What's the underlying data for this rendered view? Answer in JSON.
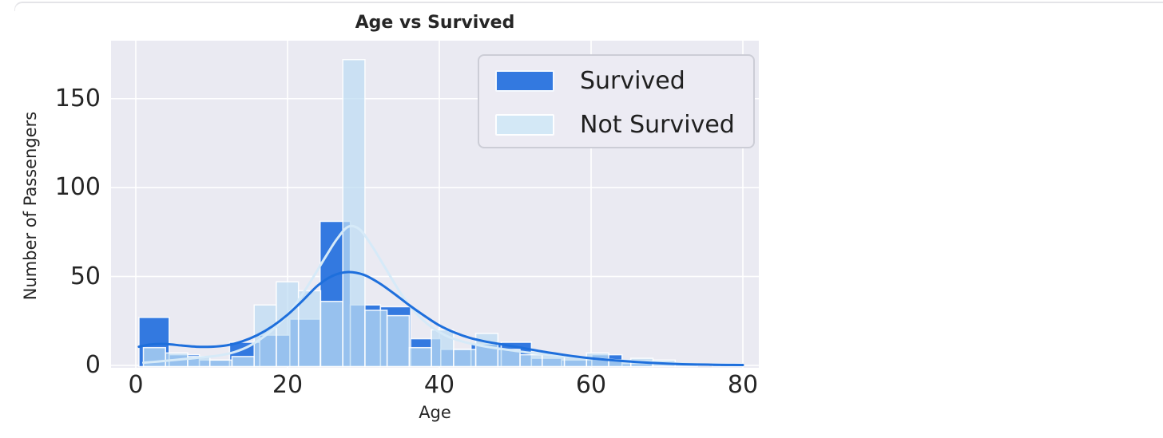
{
  "window": {
    "card_top_border": "rounded light-grey card edge across top of page"
  },
  "chart_data": {
    "type": "histogram",
    "title": "Age vs Survived",
    "xlabel": "Age",
    "ylabel": "Number of Passengers",
    "x_ticks": [
      0,
      20,
      40,
      60,
      80
    ],
    "y_ticks": [
      0,
      50,
      100,
      150
    ],
    "xlim": [
      -3.3,
      82.1
    ],
    "ylim": [
      0,
      182
    ],
    "grid": true,
    "legend_position": "upper right",
    "plot_bg": "#EAEAF2",
    "gridline_color": "#ffffff",
    "series": [
      {
        "name": "Survived",
        "type": "bars",
        "color": "#3379e0",
        "fill_opacity": 1,
        "bins": [
          [
            0.42,
            4.4,
            27
          ],
          [
            4.4,
            8.38,
            6
          ],
          [
            8.38,
            12.36,
            3
          ],
          [
            12.36,
            16.34,
            13
          ],
          [
            16.34,
            20.31,
            17
          ],
          [
            20.31,
            24.29,
            26
          ],
          [
            24.29,
            28.27,
            81
          ],
          [
            28.27,
            32.25,
            34
          ],
          [
            32.25,
            36.23,
            33
          ],
          [
            36.23,
            40.2,
            15
          ],
          [
            40.2,
            44.18,
            9
          ],
          [
            44.18,
            48.16,
            12
          ],
          [
            48.16,
            52.14,
            13
          ],
          [
            52.14,
            56.12,
            4
          ],
          [
            56.12,
            60.1,
            3
          ],
          [
            60.1,
            64.08,
            6
          ],
          [
            64.08,
            68.06,
            1
          ],
          [
            68.06,
            72.04,
            0
          ],
          [
            72.04,
            76.02,
            0
          ],
          [
            76.02,
            80.0,
            1
          ]
        ]
      },
      {
        "name": "Not Survived",
        "type": "bars",
        "color": "#bedcf3",
        "legend_color": "#d3e8f6",
        "fill_opacity": 0.72,
        "bins": [
          [
            1.0,
            3.92,
            10
          ],
          [
            3.92,
            6.84,
            7
          ],
          [
            6.84,
            9.76,
            5
          ],
          [
            9.76,
            12.68,
            3
          ],
          [
            12.68,
            15.6,
            5
          ],
          [
            15.6,
            18.52,
            34
          ],
          [
            18.52,
            21.44,
            47
          ],
          [
            21.44,
            24.36,
            42
          ],
          [
            24.36,
            27.28,
            36
          ],
          [
            27.28,
            30.2,
            172
          ],
          [
            30.2,
            33.12,
            31
          ],
          [
            33.12,
            36.04,
            28
          ],
          [
            36.04,
            38.96,
            10
          ],
          [
            38.96,
            41.88,
            20
          ],
          [
            41.88,
            44.8,
            9
          ],
          [
            44.8,
            47.72,
            18
          ],
          [
            47.72,
            50.64,
            9
          ],
          [
            50.64,
            53.56,
            6
          ],
          [
            53.56,
            56.48,
            6
          ],
          [
            56.48,
            59.4,
            5
          ],
          [
            59.4,
            62.32,
            7
          ],
          [
            62.32,
            65.24,
            3
          ],
          [
            65.24,
            68.16,
            4
          ],
          [
            68.16,
            71.08,
            3
          ],
          [
            71.08,
            74.0,
            1
          ]
        ]
      },
      {
        "name": "Not Survived KDE",
        "type": "line",
        "color": "#d6eaf8",
        "points": [
          [
            1,
            1.5
          ],
          [
            3,
            2.2
          ],
          [
            5,
            3.0
          ],
          [
            7,
            3.8
          ],
          [
            9,
            4.6
          ],
          [
            11,
            5.6
          ],
          [
            13,
            7.5
          ],
          [
            15,
            11
          ],
          [
            17,
            16.5
          ],
          [
            19,
            24
          ],
          [
            21,
            34
          ],
          [
            23,
            47
          ],
          [
            25,
            61
          ],
          [
            26.5,
            71
          ],
          [
            28,
            78
          ],
          [
            29.5,
            76.5
          ],
          [
            31,
            68
          ],
          [
            33,
            54
          ],
          [
            35,
            40
          ],
          [
            37,
            29
          ],
          [
            39,
            21.5
          ],
          [
            41,
            16.5
          ],
          [
            43,
            13.5
          ],
          [
            45,
            11.5
          ],
          [
            47,
            10
          ],
          [
            49,
            8.8
          ],
          [
            51,
            7.6
          ],
          [
            53,
            6.6
          ],
          [
            55,
            5.7
          ],
          [
            57,
            4.9
          ],
          [
            59,
            4.2
          ],
          [
            61,
            3.6
          ],
          [
            63,
            3.0
          ],
          [
            65,
            2.5
          ],
          [
            67,
            2.0
          ],
          [
            69,
            1.6
          ],
          [
            71,
            1.2
          ],
          [
            73,
            0.8
          ],
          [
            75,
            0.5
          ],
          [
            77,
            0.3
          ]
        ]
      },
      {
        "name": "Survived KDE",
        "type": "line",
        "color": "#1e6fdc",
        "points": [
          [
            0.4,
            10.5
          ],
          [
            2,
            11.8
          ],
          [
            4,
            12
          ],
          [
            6,
            11.2
          ],
          [
            8,
            10.5
          ],
          [
            10,
            10.5
          ],
          [
            12,
            11.3
          ],
          [
            14,
            13.5
          ],
          [
            16,
            17
          ],
          [
            18,
            22
          ],
          [
            20,
            28.5
          ],
          [
            22,
            36.5
          ],
          [
            24,
            45
          ],
          [
            26,
            50.5
          ],
          [
            28,
            52.5
          ],
          [
            30,
            51
          ],
          [
            32,
            46.5
          ],
          [
            34,
            40.5
          ],
          [
            36,
            34
          ],
          [
            38,
            28
          ],
          [
            40,
            22.5
          ],
          [
            42,
            18.5
          ],
          [
            44,
            15.5
          ],
          [
            46,
            13.5
          ],
          [
            48,
            12
          ],
          [
            50,
            10.5
          ],
          [
            52,
            9
          ],
          [
            54,
            7.5
          ],
          [
            56,
            6.2
          ],
          [
            58,
            5
          ],
          [
            60,
            4
          ],
          [
            62,
            3.2
          ],
          [
            64,
            2.5
          ],
          [
            66,
            1.9
          ],
          [
            68,
            1.4
          ],
          [
            70,
            1.0
          ],
          [
            72,
            0.7
          ],
          [
            74,
            0.5
          ],
          [
            76,
            0.4
          ],
          [
            78,
            0.3
          ],
          [
            80,
            0.25
          ]
        ]
      }
    ],
    "legend": {
      "items": [
        {
          "label": "Survived",
          "color": "#3379e0"
        },
        {
          "label": "Not Survived",
          "color": "#d3e8f6"
        }
      ]
    }
  }
}
